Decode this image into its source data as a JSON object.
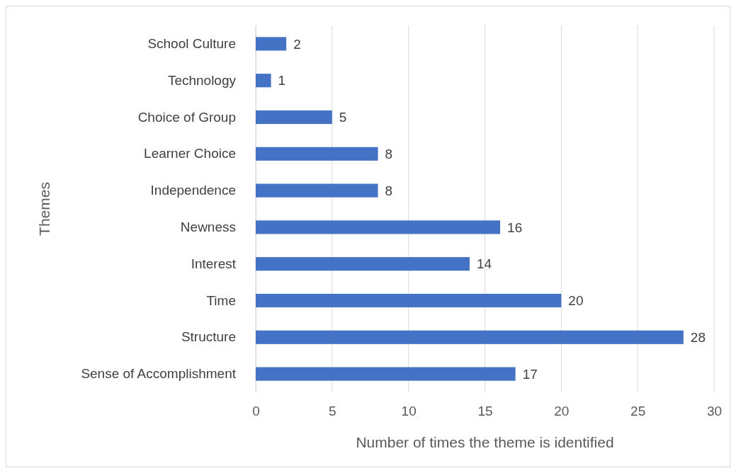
{
  "chart_data": {
    "type": "bar",
    "orientation": "horizontal",
    "xlabel": "Number of times the theme is identified",
    "ylabel": "Themes",
    "categories": [
      "School Culture",
      "Technology",
      "Choice of Group",
      "Learner Choice",
      "Independence",
      "Newness",
      "Interest",
      "Time",
      "Structure",
      "Sense of Accomplishment"
    ],
    "values": [
      2,
      1,
      5,
      8,
      8,
      16,
      14,
      20,
      28,
      17
    ],
    "color": "#4472c4",
    "xlim": [
      0,
      30
    ],
    "xticks": [
      0,
      5,
      10,
      15,
      20,
      25,
      30
    ],
    "grid": "x",
    "data_labels": true
  }
}
